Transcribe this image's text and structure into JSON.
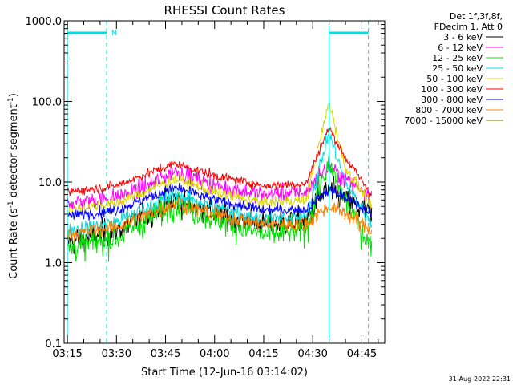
{
  "chart_data": {
    "type": "line",
    "title": "RHESSI Count Rates",
    "xlabel": "Start Time (12-Jun-16 03:14:02)",
    "ylabel_main": "Count Rate (s",
    "ylabel_sup1": "-1",
    "ylabel_mid": " detector segment",
    "ylabel_sup2": "-1",
    "ylabel_end": ")",
    "y_scale": "log",
    "ylim": [
      0.1,
      1000
    ],
    "xlim": [
      "03:14",
      "04:52"
    ],
    "x_ticks": [
      "03:15",
      "03:30",
      "03:45",
      "04:00",
      "04:15",
      "04:30",
      "04:45"
    ],
    "y_ticks": [
      "0.1",
      "1.0",
      "10.0",
      "100.0",
      "1000.0"
    ],
    "legend_position": "top-right",
    "legend_header": [
      "Det 1f,3f,8f,",
      "FDecim 1, Att 0"
    ],
    "night_flag": "N",
    "footer_date": "31-Aug-2022 22:31",
    "colors": {
      "3 - 6 keV": "#000000",
      "6 - 12 keV": "#ff00ff",
      "12 - 25 keV": "#00e000",
      "25 - 50 keV": "#00e0e0",
      "50 - 100 keV": "#d8d800",
      "100 - 300 keV": "#ff0000",
      "300 - 800 keV": "#0000ff",
      "800 - 7000 keV": "#ff8000",
      "7000 - 15000 keV": "#808000",
      "markers": "#00e0e0"
    },
    "markers": {
      "solid_vlines": [
        "03:15",
        "04:35"
      ],
      "dashed_vlines": [
        "03:27",
        "04:47"
      ],
      "night_bar": [
        "03:15",
        "03:27"
      ],
      "saa_bar": [
        "04:35",
        "04:47"
      ]
    },
    "series": [
      {
        "name": "3 - 6 keV",
        "t": [
          "03:15",
          "03:30",
          "03:40",
          "03:48",
          "04:00",
          "04:15",
          "04:28",
          "04:32",
          "04:35",
          "04:40",
          "04:48"
        ],
        "values": [
          1.8,
          2.5,
          4.2,
          6.0,
          4.0,
          3.0,
          3.2,
          6.5,
          8.0,
          6.0,
          4.0
        ]
      },
      {
        "name": "6 - 12 keV",
        "t": [
          "03:15",
          "03:30",
          "03:40",
          "03:48",
          "04:00",
          "04:15",
          "04:28",
          "04:32",
          "04:35",
          "04:40",
          "04:48"
        ],
        "values": [
          5.5,
          6.5,
          9.0,
          14.0,
          9.0,
          7.0,
          7.5,
          12.0,
          15.0,
          11.0,
          7.0
        ]
      },
      {
        "name": "12 - 25 keV",
        "t": [
          "03:15",
          "03:30",
          "03:40",
          "03:48",
          "04:00",
          "04:15",
          "04:28",
          "04:32",
          "04:35",
          "04:40",
          "04:48"
        ],
        "values": [
          1.5,
          2.0,
          3.5,
          5.5,
          3.5,
          2.2,
          2.5,
          9.0,
          16.0,
          6.0,
          1.5
        ]
      },
      {
        "name": "25 - 50 keV",
        "t": [
          "03:15",
          "03:30",
          "03:40",
          "03:48",
          "04:00",
          "04:15",
          "04:28",
          "04:32",
          "04:35",
          "04:40",
          "04:48"
        ],
        "values": [
          2.5,
          3.2,
          5.0,
          7.0,
          5.0,
          3.5,
          3.6,
          15.0,
          40.0,
          10.0,
          3.0
        ]
      },
      {
        "name": "50 - 100 keV",
        "t": [
          "03:15",
          "03:30",
          "03:40",
          "03:48",
          "04:00",
          "04:15",
          "04:28",
          "04:32",
          "04:35",
          "04:40",
          "04:48"
        ],
        "values": [
          4.5,
          5.5,
          8.0,
          11.0,
          7.5,
          5.5,
          6.0,
          30.0,
          100.0,
          15.0,
          5.0
        ]
      },
      {
        "name": "100 - 300 keV",
        "t": [
          "03:15",
          "03:30",
          "03:40",
          "03:48",
          "04:00",
          "04:15",
          "04:28",
          "04:32",
          "04:35",
          "04:40",
          "04:48"
        ],
        "values": [
          7.5,
          9.0,
          13.0,
          17.0,
          12.0,
          9.0,
          9.5,
          25.0,
          47.0,
          20.0,
          7.0
        ]
      },
      {
        "name": "300 - 800 keV",
        "t": [
          "03:15",
          "03:30",
          "03:40",
          "03:48",
          "04:00",
          "04:15",
          "04:28",
          "04:32",
          "04:35",
          "04:40",
          "04:48"
        ],
        "values": [
          3.8,
          4.5,
          6.5,
          8.5,
          6.0,
          4.5,
          4.6,
          6.5,
          8.0,
          6.5,
          4.0
        ]
      },
      {
        "name": "800 - 7000 keV",
        "t": [
          "03:15",
          "03:30",
          "03:40",
          "03:48",
          "04:00",
          "04:15",
          "04:28",
          "04:32",
          "04:35",
          "04:40",
          "04:48"
        ],
        "values": [
          2.2,
          2.8,
          4.0,
          5.5,
          4.0,
          3.0,
          3.0,
          4.2,
          5.0,
          4.2,
          2.5
        ]
      },
      {
        "name": "7000 - 15000 keV",
        "t": [],
        "values": []
      }
    ]
  }
}
